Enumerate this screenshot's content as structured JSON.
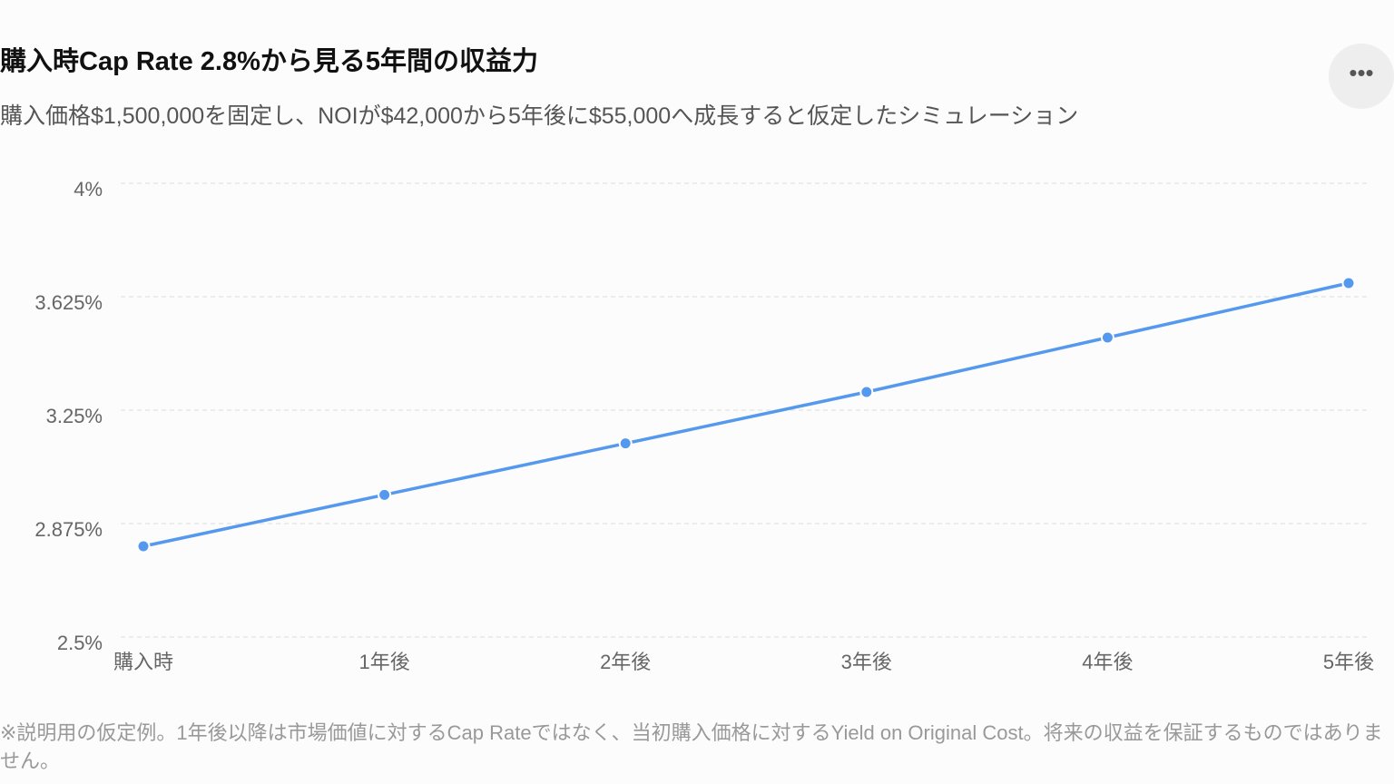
{
  "chart_data": {
    "type": "line",
    "title": "購入時Cap Rate 2.8%から見る5年間の収益力",
    "subtitle": "購入価格$1,500,000を固定し、NOIが$42,000から5年後に$55,000へ成長すると仮定したシミュレーション",
    "footnote": "※説明用の仮定例。1年後以降は市場価値に対するCap Rateではなく、当初購入価格に対するYield on Original Cost。将来の収益を保証するものではありません。",
    "categories": [
      "購入時",
      "1年後",
      "2年後",
      "3年後",
      "4年後",
      "5年後"
    ],
    "values": [
      2.8,
      2.97,
      3.14,
      3.31,
      3.49,
      3.67
    ],
    "color": "#5599ee",
    "ylim": [
      2.5,
      4
    ],
    "yticks": [
      {
        "value": 2.5,
        "label": "2.5%"
      },
      {
        "value": 2.875,
        "label": "2.875%"
      },
      {
        "value": 3.25,
        "label": "3.25%"
      },
      {
        "value": 3.625,
        "label": "3.625%"
      },
      {
        "value": 4,
        "label": "4%"
      }
    ],
    "grid": true
  }
}
